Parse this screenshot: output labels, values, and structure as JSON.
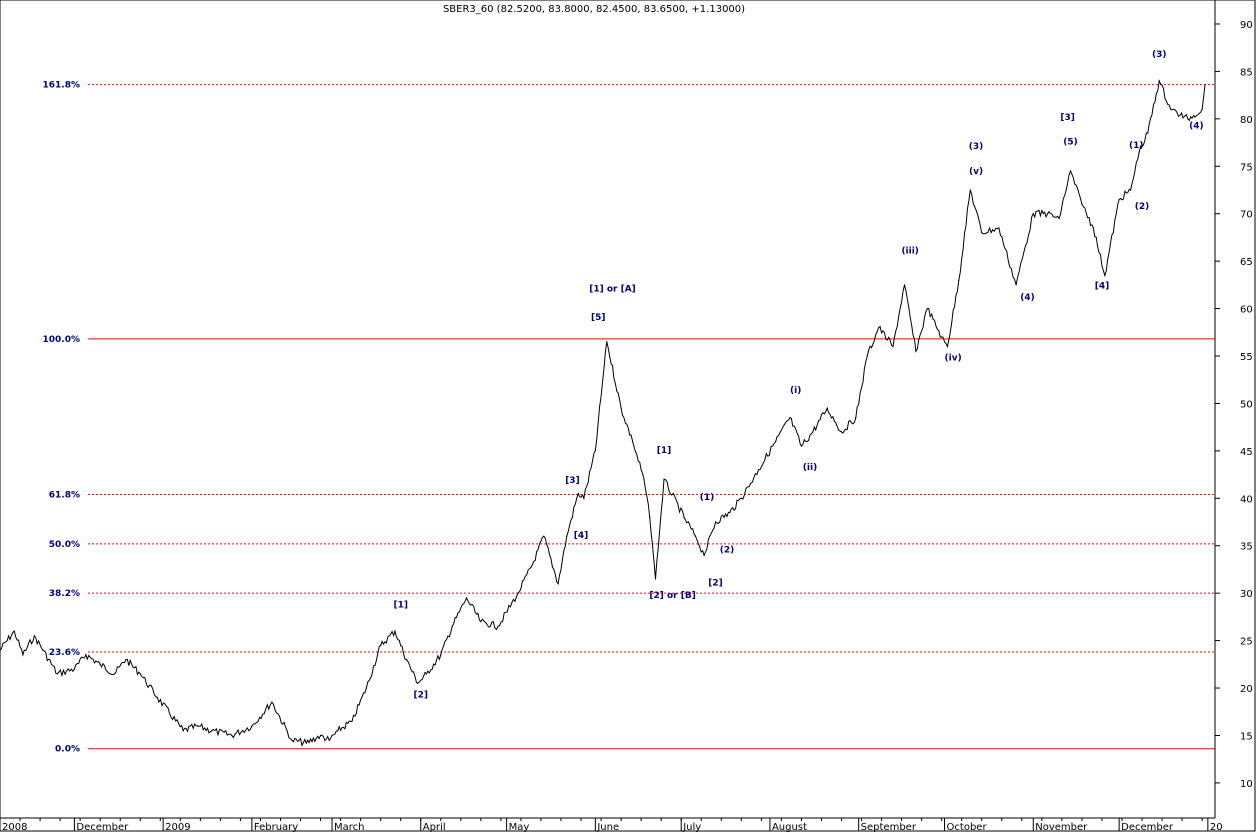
{
  "chart_data": {
    "type": "line",
    "title": "SBER3_60 (82.5200, 83.8000, 82.4500, 83.6500, +1.13000)",
    "xlabel": "",
    "ylabel": "",
    "x_start": "2008-11-05",
    "x_end": "2009-12-31",
    "ylim": [
      6.3,
      92
    ],
    "y_ticks": [
      10,
      15,
      20,
      25,
      30,
      35,
      40,
      45,
      50,
      55,
      60,
      65,
      70,
      75,
      80,
      85,
      90
    ],
    "grid": false,
    "legend": "none",
    "colors": {
      "price": "#000000",
      "fib_line": "#ff0000",
      "label": "#00007f"
    },
    "x_ticks": [
      {
        "date": "2008-11-05",
        "label": "2008"
      },
      {
        "date": "2008-12-01",
        "label": "December"
      },
      {
        "date": "2009-01-01",
        "label": "2009"
      },
      {
        "date": "2009-02-01",
        "label": "February"
      },
      {
        "date": "2009-03-01",
        "label": "March"
      },
      {
        "date": "2009-04-01",
        "label": "April"
      },
      {
        "date": "2009-05-01",
        "label": "May"
      },
      {
        "date": "2009-06-01",
        "label": "June"
      },
      {
        "date": "2009-07-01",
        "label": "July"
      },
      {
        "date": "2009-08-01",
        "label": "August"
      },
      {
        "date": "2009-09-01",
        "label": "September"
      },
      {
        "date": "2009-10-01",
        "label": "October"
      },
      {
        "date": "2009-11-01",
        "label": "November"
      },
      {
        "date": "2009-12-01",
        "label": "December"
      },
      {
        "date": "2010-01-01",
        "label": "20"
      }
    ],
    "fib_levels": [
      {
        "label": "161.8%",
        "y": 83.6,
        "style": "dotted"
      },
      {
        "label": "100.0%",
        "y": 56.8,
        "style": "solid"
      },
      {
        "label": "61.8%",
        "y": 40.4,
        "style": "dotted"
      },
      {
        "label": "50.0%",
        "y": 35.2,
        "style": "dotted"
      },
      {
        "label": "38.2%",
        "y": 30.0,
        "style": "dotted"
      },
      {
        "label": "23.6%",
        "y": 23.8,
        "style": "dotted"
      },
      {
        "label": "0.0%",
        "y": 13.6,
        "style": "solid"
      }
    ],
    "series": [
      {
        "x": [
          "2008-11-05",
          "2008-11-10",
          "2008-11-13",
          "2008-11-17",
          "2008-11-20",
          "2008-11-25",
          "2008-12-01",
          "2008-12-05",
          "2008-12-10",
          "2008-12-15",
          "2008-12-19",
          "2008-12-24",
          "2008-12-30",
          "2009-01-08",
          "2009-01-13",
          "2009-01-18",
          "2009-01-25",
          "2009-02-01",
          "2009-02-08",
          "2009-02-15",
          "2009-02-20",
          "2009-02-25",
          "2009-02-28",
          "2009-03-03",
          "2009-03-08",
          "2009-03-13",
          "2009-03-18",
          "2009-03-23",
          "2009-03-27",
          "2009-03-31",
          "2009-04-03",
          "2009-04-08",
          "2009-04-12",
          "2009-04-17",
          "2009-04-22",
          "2009-04-28",
          "2009-05-05",
          "2009-05-10",
          "2009-05-14",
          "2009-05-19",
          "2009-05-22",
          "2009-05-26",
          "2009-05-28",
          "2009-06-01",
          "2009-06-05",
          "2009-06-10",
          "2009-06-14",
          "2009-06-18",
          "2009-06-20",
          "2009-06-22",
          "2009-06-25",
          "2009-07-02",
          "2009-07-06",
          "2009-07-09",
          "2009-07-13",
          "2009-07-18",
          "2009-07-22",
          "2009-07-28",
          "2009-08-03",
          "2009-08-08",
          "2009-08-12",
          "2009-08-16",
          "2009-08-21",
          "2009-08-26",
          "2009-08-31",
          "2009-09-04",
          "2009-09-08",
          "2009-09-13",
          "2009-09-17",
          "2009-09-21",
          "2009-09-25",
          "2009-09-30",
          "2009-10-02",
          "2009-10-06",
          "2009-10-10",
          "2009-10-14",
          "2009-10-20",
          "2009-10-26",
          "2009-11-01",
          "2009-11-06",
          "2009-11-10",
          "2009-11-14",
          "2009-11-18",
          "2009-11-22",
          "2009-11-26",
          "2009-12-01",
          "2009-12-05",
          "2009-12-08",
          "2009-12-11",
          "2009-12-15",
          "2009-12-19",
          "2009-12-25",
          "2009-12-30",
          "2009-12-31"
        ],
        "values": [
          24.0,
          26.0,
          23.5,
          25.5,
          24.0,
          21.5,
          22.0,
          23.5,
          22.5,
          21.5,
          23.0,
          21.5,
          19.0,
          15.5,
          16.0,
          15.5,
          15.0,
          16.0,
          18.5,
          14.5,
          14.2,
          15.0,
          14.5,
          15.5,
          16.5,
          20.0,
          24.5,
          26.0,
          23.0,
          20.5,
          21.5,
          23.5,
          26.5,
          29.5,
          27.0,
          26.5,
          30.0,
          33.0,
          36.0,
          31.0,
          36.0,
          40.5,
          40.0,
          45.0,
          56.5,
          49.5,
          46.0,
          42.0,
          38.0,
          31.5,
          42.0,
          38.0,
          36.0,
          34.0,
          37.5,
          38.5,
          40.0,
          43.0,
          46.0,
          48.5,
          45.5,
          47.0,
          49.5,
          47.0,
          48.5,
          55.0,
          58.0,
          56.0,
          62.5,
          55.5,
          60.0,
          57.0,
          56.0,
          63.0,
          72.5,
          68.0,
          68.5,
          62.5,
          70.0,
          70.0,
          69.5,
          74.5,
          71.0,
          68.5,
          63.5,
          71.5,
          72.5,
          76.5,
          78.5,
          84.0,
          81.0,
          80.0,
          81.0,
          83.6
        ]
      }
    ],
    "wave_labels": [
      {
        "text": "[1]",
        "x": "2009-03-25",
        "y": 28.5
      },
      {
        "text": "[2]",
        "x": "2009-04-01",
        "y": 19.0
      },
      {
        "text": "[3]",
        "x": "2009-05-24",
        "y": 41.6
      },
      {
        "text": "[4]",
        "x": "2009-05-27",
        "y": 35.8
      },
      {
        "text": "[5]",
        "x": "2009-06-02",
        "y": 58.8
      },
      {
        "text": "[1] or [A]",
        "x": "2009-06-07",
        "y": 61.8
      },
      {
        "text": "[1]",
        "x": "2009-06-25",
        "y": 44.8
      },
      {
        "text": "[2] or [B]",
        "x": "2009-06-28",
        "y": 29.5
      },
      {
        "text": "(1)",
        "x": "2009-07-10",
        "y": 39.8
      },
      {
        "text": "(2)",
        "x": "2009-07-17",
        "y": 34.3
      },
      {
        "text": "[2]",
        "x": "2009-07-13",
        "y": 30.8
      },
      {
        "text": "(i)",
        "x": "2009-08-10",
        "y": 51.1
      },
      {
        "text": "(ii)",
        "x": "2009-08-15",
        "y": 43.0
      },
      {
        "text": "(iii)",
        "x": "2009-09-19",
        "y": 65.8
      },
      {
        "text": "(iv)",
        "x": "2009-10-04",
        "y": 54.5
      },
      {
        "text": "(v)",
        "x": "2009-10-12",
        "y": 74.2
      },
      {
        "text": "(3)",
        "x": "2009-10-12",
        "y": 76.8
      },
      {
        "text": "(4)",
        "x": "2009-10-30",
        "y": 60.9
      },
      {
        "text": "[3]",
        "x": "2009-11-13",
        "y": 79.9
      },
      {
        "text": "(5)",
        "x": "2009-11-14",
        "y": 77.3
      },
      {
        "text": "[4]",
        "x": "2009-11-25",
        "y": 62.1
      },
      {
        "text": "(1)",
        "x": "2009-12-07",
        "y": 76.9
      },
      {
        "text": "(2)",
        "x": "2009-12-09",
        "y": 70.5
      },
      {
        "text": "(3)",
        "x": "2009-12-15",
        "y": 86.5
      },
      {
        "text": "(4)",
        "x": "2009-12-28",
        "y": 79.0
      }
    ]
  }
}
